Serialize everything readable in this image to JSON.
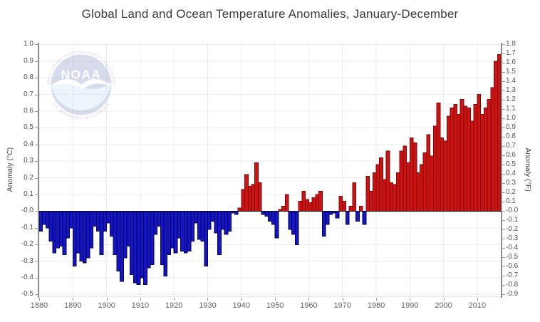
{
  "title": "Global Land and Ocean Temperature Anomalies, January-December",
  "logo": {
    "arc_text_top": "NATIONAL OCEANIC AND ATMOSPHERIC ADMINISTRATION",
    "name": "NOAA",
    "arc_text_bottom": "U.S. DEPARTMENT OF COMMERCE"
  },
  "chart_data": {
    "type": "bar",
    "title": "Global Land and Ocean Temperature Anomalies, January-December",
    "ylabel_left": "Anomaly (°C)",
    "ylabel_right": "Anomaly (°F)",
    "x_start_year": 1880,
    "x_end_year": 2016,
    "ylim_c": [
      -0.515,
      1.01
    ],
    "grid": true,
    "legend": false,
    "yticks_c": [
      "1.0",
      "0.9",
      "0.8",
      "0.7",
      "0.6",
      "0.5",
      "0.4",
      "0.3",
      "0.2",
      "0.1",
      "-0.0",
      "-0.1",
      "-0.2",
      "-0.3",
      "-0.4",
      "-0.5"
    ],
    "yticks_f": [
      "1.8",
      "1.7",
      "1.6",
      "1.5",
      "1.4",
      "1.3",
      "1.2",
      "1.1",
      "1.0",
      "0.9",
      "0.8",
      "0.7",
      "0.6",
      "0.5",
      "0.4",
      "0.3",
      "0.2",
      "0.1",
      "-0.0",
      "-0.1",
      "-0.2",
      "-0.3",
      "-0.4",
      "-0.5",
      "-0.6",
      "-0.7",
      "-0.8",
      "-0.9"
    ],
    "xticks": [
      "1880",
      "1890",
      "1900",
      "1910",
      "1920",
      "1930",
      "1940",
      "1950",
      "1960",
      "1970",
      "1980",
      "1990",
      "2000",
      "2010"
    ],
    "years": [
      1880,
      1881,
      1882,
      1883,
      1884,
      1885,
      1886,
      1887,
      1888,
      1889,
      1890,
      1891,
      1892,
      1893,
      1894,
      1895,
      1896,
      1897,
      1898,
      1899,
      1900,
      1901,
      1902,
      1903,
      1904,
      1905,
      1906,
      1907,
      1908,
      1909,
      1910,
      1911,
      1912,
      1913,
      1914,
      1915,
      1916,
      1917,
      1918,
      1919,
      1920,
      1921,
      1922,
      1923,
      1924,
      1925,
      1926,
      1927,
      1928,
      1929,
      1930,
      1931,
      1932,
      1933,
      1934,
      1935,
      1936,
      1937,
      1938,
      1939,
      1940,
      1941,
      1942,
      1943,
      1944,
      1945,
      1946,
      1947,
      1948,
      1949,
      1950,
      1951,
      1952,
      1953,
      1954,
      1955,
      1956,
      1957,
      1958,
      1959,
      1960,
      1961,
      1962,
      1963,
      1964,
      1965,
      1966,
      1967,
      1968,
      1969,
      1970,
      1971,
      1972,
      1973,
      1974,
      1975,
      1976,
      1977,
      1978,
      1979,
      1980,
      1981,
      1982,
      1983,
      1984,
      1985,
      1986,
      1987,
      1988,
      1989,
      1990,
      1991,
      1992,
      1993,
      1994,
      1995,
      1996,
      1997,
      1998,
      1999,
      2000,
      2001,
      2002,
      2003,
      2004,
      2005,
      2006,
      2007,
      2008,
      2009,
      2010,
      2011,
      2012,
      2013,
      2014,
      2015,
      2016
    ],
    "values_c": [
      -0.12,
      -0.08,
      -0.1,
      -0.18,
      -0.25,
      -0.22,
      -0.21,
      -0.26,
      -0.16,
      -0.1,
      -0.33,
      -0.25,
      -0.3,
      -0.31,
      -0.28,
      -0.22,
      -0.09,
      -0.12,
      -0.26,
      -0.12,
      -0.07,
      -0.15,
      -0.26,
      -0.36,
      -0.42,
      -0.28,
      -0.21,
      -0.38,
      -0.43,
      -0.44,
      -0.4,
      -0.44,
      -0.34,
      -0.32,
      -0.14,
      -0.09,
      -0.32,
      -0.39,
      -0.26,
      -0.22,
      -0.25,
      -0.16,
      -0.24,
      -0.25,
      -0.24,
      -0.18,
      -0.07,
      -0.17,
      -0.18,
      -0.33,
      -0.11,
      -0.06,
      -0.13,
      -0.26,
      -0.11,
      -0.14,
      -0.12,
      -0.01,
      -0.02,
      0.02,
      0.13,
      0.22,
      0.15,
      0.16,
      0.29,
      0.17,
      -0.02,
      -0.03,
      -0.06,
      -0.08,
      -0.16,
      0.01,
      0.03,
      0.1,
      -0.11,
      -0.14,
      -0.2,
      0.06,
      0.12,
      0.07,
      0.05,
      0.08,
      0.1,
      0.12,
      -0.15,
      -0.08,
      -0.02,
      -0.01,
      -0.04,
      0.09,
      0.06,
      -0.08,
      0.03,
      0.17,
      -0.06,
      0.03,
      -0.08,
      0.21,
      0.12,
      0.23,
      0.28,
      0.32,
      0.19,
      0.36,
      0.17,
      0.16,
      0.23,
      0.36,
      0.39,
      0.29,
      0.44,
      0.41,
      0.23,
      0.28,
      0.35,
      0.46,
      0.33,
      0.51,
      0.65,
      0.44,
      0.42,
      0.57,
      0.62,
      0.64,
      0.58,
      0.67,
      0.63,
      0.62,
      0.54,
      0.64,
      0.7,
      0.58,
      0.62,
      0.67,
      0.74,
      0.9,
      0.94
    ],
    "colors": {
      "positive_fill": "#CE1212",
      "positive_border": "#7A0A0A",
      "negative_fill": "#1414CC",
      "negative_border": "#05053C",
      "zero_line": "#000000",
      "gridline": "#ECECEC",
      "plot_bottom_border": "#E3E3E3",
      "axis_line": "#8C8C8C",
      "tick_mark": "#999999",
      "ytick_label": "#555555",
      "xtick_label": "#666666",
      "title_color": "#3A3A3A"
    }
  }
}
